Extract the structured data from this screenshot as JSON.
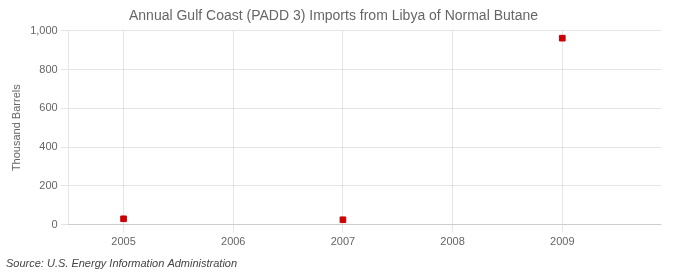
{
  "chart_data": {
    "type": "scatter",
    "title": "Annual Gulf Coast (PADD 3) Imports from Libya of Normal Butane",
    "ylabel": "Thousand Barrels",
    "annotation": "Source: U.S. Energy Information Administration",
    "x": [
      2005,
      2007,
      2009
    ],
    "values": [
      30,
      25,
      962
    ],
    "color": "#cc0000",
    "marker": "square",
    "xlim": [
      2004.5,
      2009.9
    ],
    "ylim": [
      0,
      1000
    ],
    "xticks": [
      2005,
      2006,
      2007,
      2008,
      2009
    ],
    "yticks": [
      0,
      200,
      400,
      600,
      800,
      {
        "value": 1000,
        "label": "1,000"
      }
    ],
    "grid": true
  }
}
